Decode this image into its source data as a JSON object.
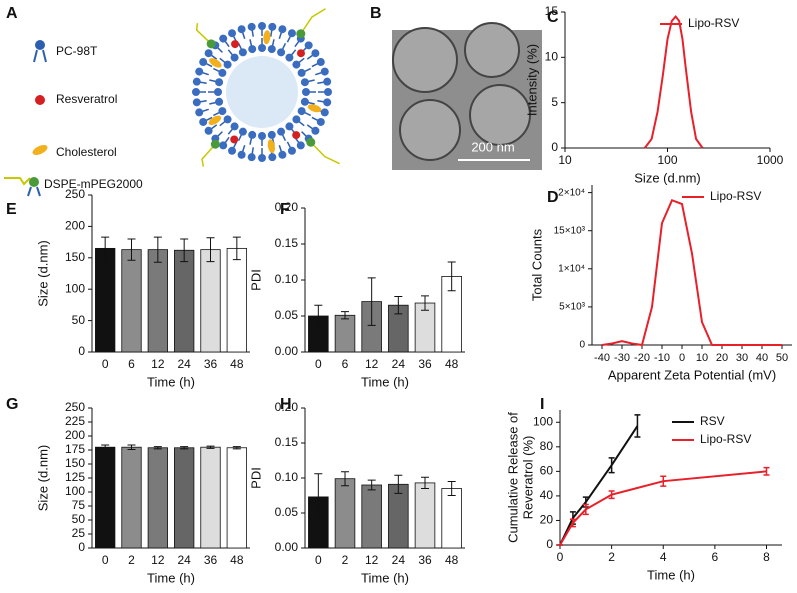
{
  "diagram": {
    "label": "A",
    "legend": [
      "PC-98T",
      "Resveratrol",
      "Cholesterol",
      "DSPE-mPEG2000"
    ]
  },
  "image": {
    "label": "B",
    "scale_bar": "200 nm"
  },
  "chart_data": [
    {
      "type": "line",
      "label": "C",
      "xlabel": "Size (d.nm)",
      "ylabel": "Intensity (%)",
      "xlog": true,
      "xlim": [
        10,
        1000
      ],
      "xticks": [
        10,
        100,
        1000
      ],
      "ylim": [
        0,
        15
      ],
      "yticks": [
        0,
        5,
        10,
        15
      ],
      "legend": "upper right",
      "series": [
        {
          "name": "Lipo-RSV",
          "color": "#e8202a",
          "x": [
            60,
            70,
            80,
            90,
            100,
            110,
            120,
            130,
            140,
            150,
            170,
            190,
            220
          ],
          "values": [
            0,
            1,
            4,
            8,
            12,
            14,
            14.5,
            14,
            12,
            9,
            4,
            1,
            0
          ]
        }
      ]
    },
    {
      "type": "line",
      "label": "D",
      "xlabel": "Apparent Zeta Potential (mV)",
      "ylabel": "Total Counts",
      "xlim": [
        -45,
        55
      ],
      "xticks": [
        -40,
        -30,
        -20,
        -10,
        0,
        10,
        20,
        30,
        40,
        50
      ],
      "ylim": [
        0,
        21000
      ],
      "yticks": [
        0,
        {
          "value": 5000,
          "label": "5×10³"
        },
        {
          "value": 10000,
          "label": "1×10⁴"
        },
        {
          "value": 15000,
          "label": "15×10³"
        },
        {
          "value": 20000,
          "label": "2×10⁴"
        }
      ],
      "legend": "upper right",
      "series": [
        {
          "name": "Lipo-RSV",
          "color": "#e8202a",
          "x": [
            -40,
            -35,
            -30,
            -25,
            -20,
            -15,
            -10,
            -5,
            0,
            5,
            10,
            15,
            20,
            50
          ],
          "values": [
            0,
            200,
            500,
            200,
            0,
            5000,
            16000,
            19000,
            18500,
            12000,
            3000,
            0,
            0,
            0
          ]
        }
      ]
    },
    {
      "type": "bar",
      "label": "E",
      "xlabel": "Time (h)",
      "ylabel": "Size (d.nm)",
      "categories": [
        "0",
        "6",
        "12",
        "24",
        "36",
        "48"
      ],
      "values": [
        165,
        163,
        163,
        162,
        163,
        165
      ],
      "errors": [
        18,
        17,
        20,
        18,
        19,
        18
      ],
      "colors": [
        "#111111",
        "#8c8c8c",
        "#7a7a7a",
        "#666666",
        "#dddddd",
        "#ffffff"
      ],
      "ylim": [
        0,
        250
      ],
      "yticks": [
        0,
        50,
        100,
        150,
        200,
        250
      ]
    },
    {
      "type": "bar",
      "label": "F",
      "xlabel": "Time (h)",
      "ylabel": "PDI",
      "categories": [
        "0",
        "6",
        "12",
        "24",
        "36",
        "48"
      ],
      "values": [
        0.05,
        0.051,
        0.07,
        0.065,
        0.068,
        0.105
      ],
      "errors": [
        0.015,
        0.005,
        0.033,
        0.012,
        0.01,
        0.02
      ],
      "colors": [
        "#111111",
        "#8c8c8c",
        "#7a7a7a",
        "#666666",
        "#dddddd",
        "#ffffff"
      ],
      "ylim": [
        0,
        0.2
      ],
      "yticks": [
        {
          "value": 0,
          "label": "0.00"
        },
        {
          "value": 0.05,
          "label": "0.05"
        },
        {
          "value": 0.1,
          "label": "0.10"
        },
        {
          "value": 0.15,
          "label": "0.15"
        },
        {
          "value": 0.2,
          "label": "0.20"
        }
      ]
    },
    {
      "type": "bar",
      "label": "G",
      "xlabel": "Time (h)",
      "ylabel": "Size (d.nm)",
      "categories": [
        "0",
        "2",
        "12",
        "24",
        "36",
        "48"
      ],
      "values": [
        180,
        180,
        179,
        179,
        180,
        179
      ],
      "errors": [
        4,
        4,
        2,
        2,
        2,
        2
      ],
      "colors": [
        "#111111",
        "#8c8c8c",
        "#7a7a7a",
        "#666666",
        "#dddddd",
        "#ffffff"
      ],
      "ylim": [
        0,
        250
      ],
      "yticks": [
        0,
        25,
        50,
        75,
        100,
        125,
        150,
        175,
        200,
        225,
        250
      ]
    },
    {
      "type": "bar",
      "label": "H",
      "xlabel": "Time (h)",
      "ylabel": "PDI",
      "categories": [
        "0",
        "2",
        "12",
        "24",
        "36",
        "48"
      ],
      "values": [
        0.073,
        0.099,
        0.09,
        0.091,
        0.093,
        0.085
      ],
      "errors": [
        0.033,
        0.01,
        0.007,
        0.013,
        0.008,
        0.01
      ],
      "colors": [
        "#111111",
        "#8c8c8c",
        "#7a7a7a",
        "#666666",
        "#dddddd",
        "#ffffff"
      ],
      "ylim": [
        0,
        0.2
      ],
      "yticks": [
        {
          "value": 0,
          "label": "0.00"
        },
        {
          "value": 0.05,
          "label": "0.05"
        },
        {
          "value": 0.1,
          "label": "0.10"
        },
        {
          "value": 0.15,
          "label": "0.15"
        },
        {
          "value": 0.2,
          "label": "0.20"
        }
      ]
    },
    {
      "type": "line",
      "label": "I",
      "xlabel": "Time (h)",
      "ylabel": [
        "Cumulative Release of",
        "Reveratrol (%)"
      ],
      "xlim": [
        0,
        8.6
      ],
      "xticks": [
        0,
        2,
        4,
        6,
        8
      ],
      "ylim": [
        0,
        110
      ],
      "yticks": [
        0,
        20,
        40,
        60,
        80,
        100
      ],
      "legend": "upper right",
      "series": [
        {
          "name": "RSV",
          "color": "#111111",
          "x": [
            0,
            0.5,
            1,
            2,
            3
          ],
          "values": [
            0,
            22,
            35,
            65,
            97
          ],
          "errors": [
            0,
            5,
            4,
            6,
            9
          ]
        },
        {
          "name": "Lipo-RSV",
          "color": "#e8202a",
          "x": [
            0,
            0.5,
            1,
            2,
            4,
            8
          ],
          "values": [
            0,
            18,
            29,
            41,
            52,
            60
          ],
          "errors": [
            0,
            3,
            4,
            3,
            4,
            3
          ]
        }
      ]
    }
  ]
}
